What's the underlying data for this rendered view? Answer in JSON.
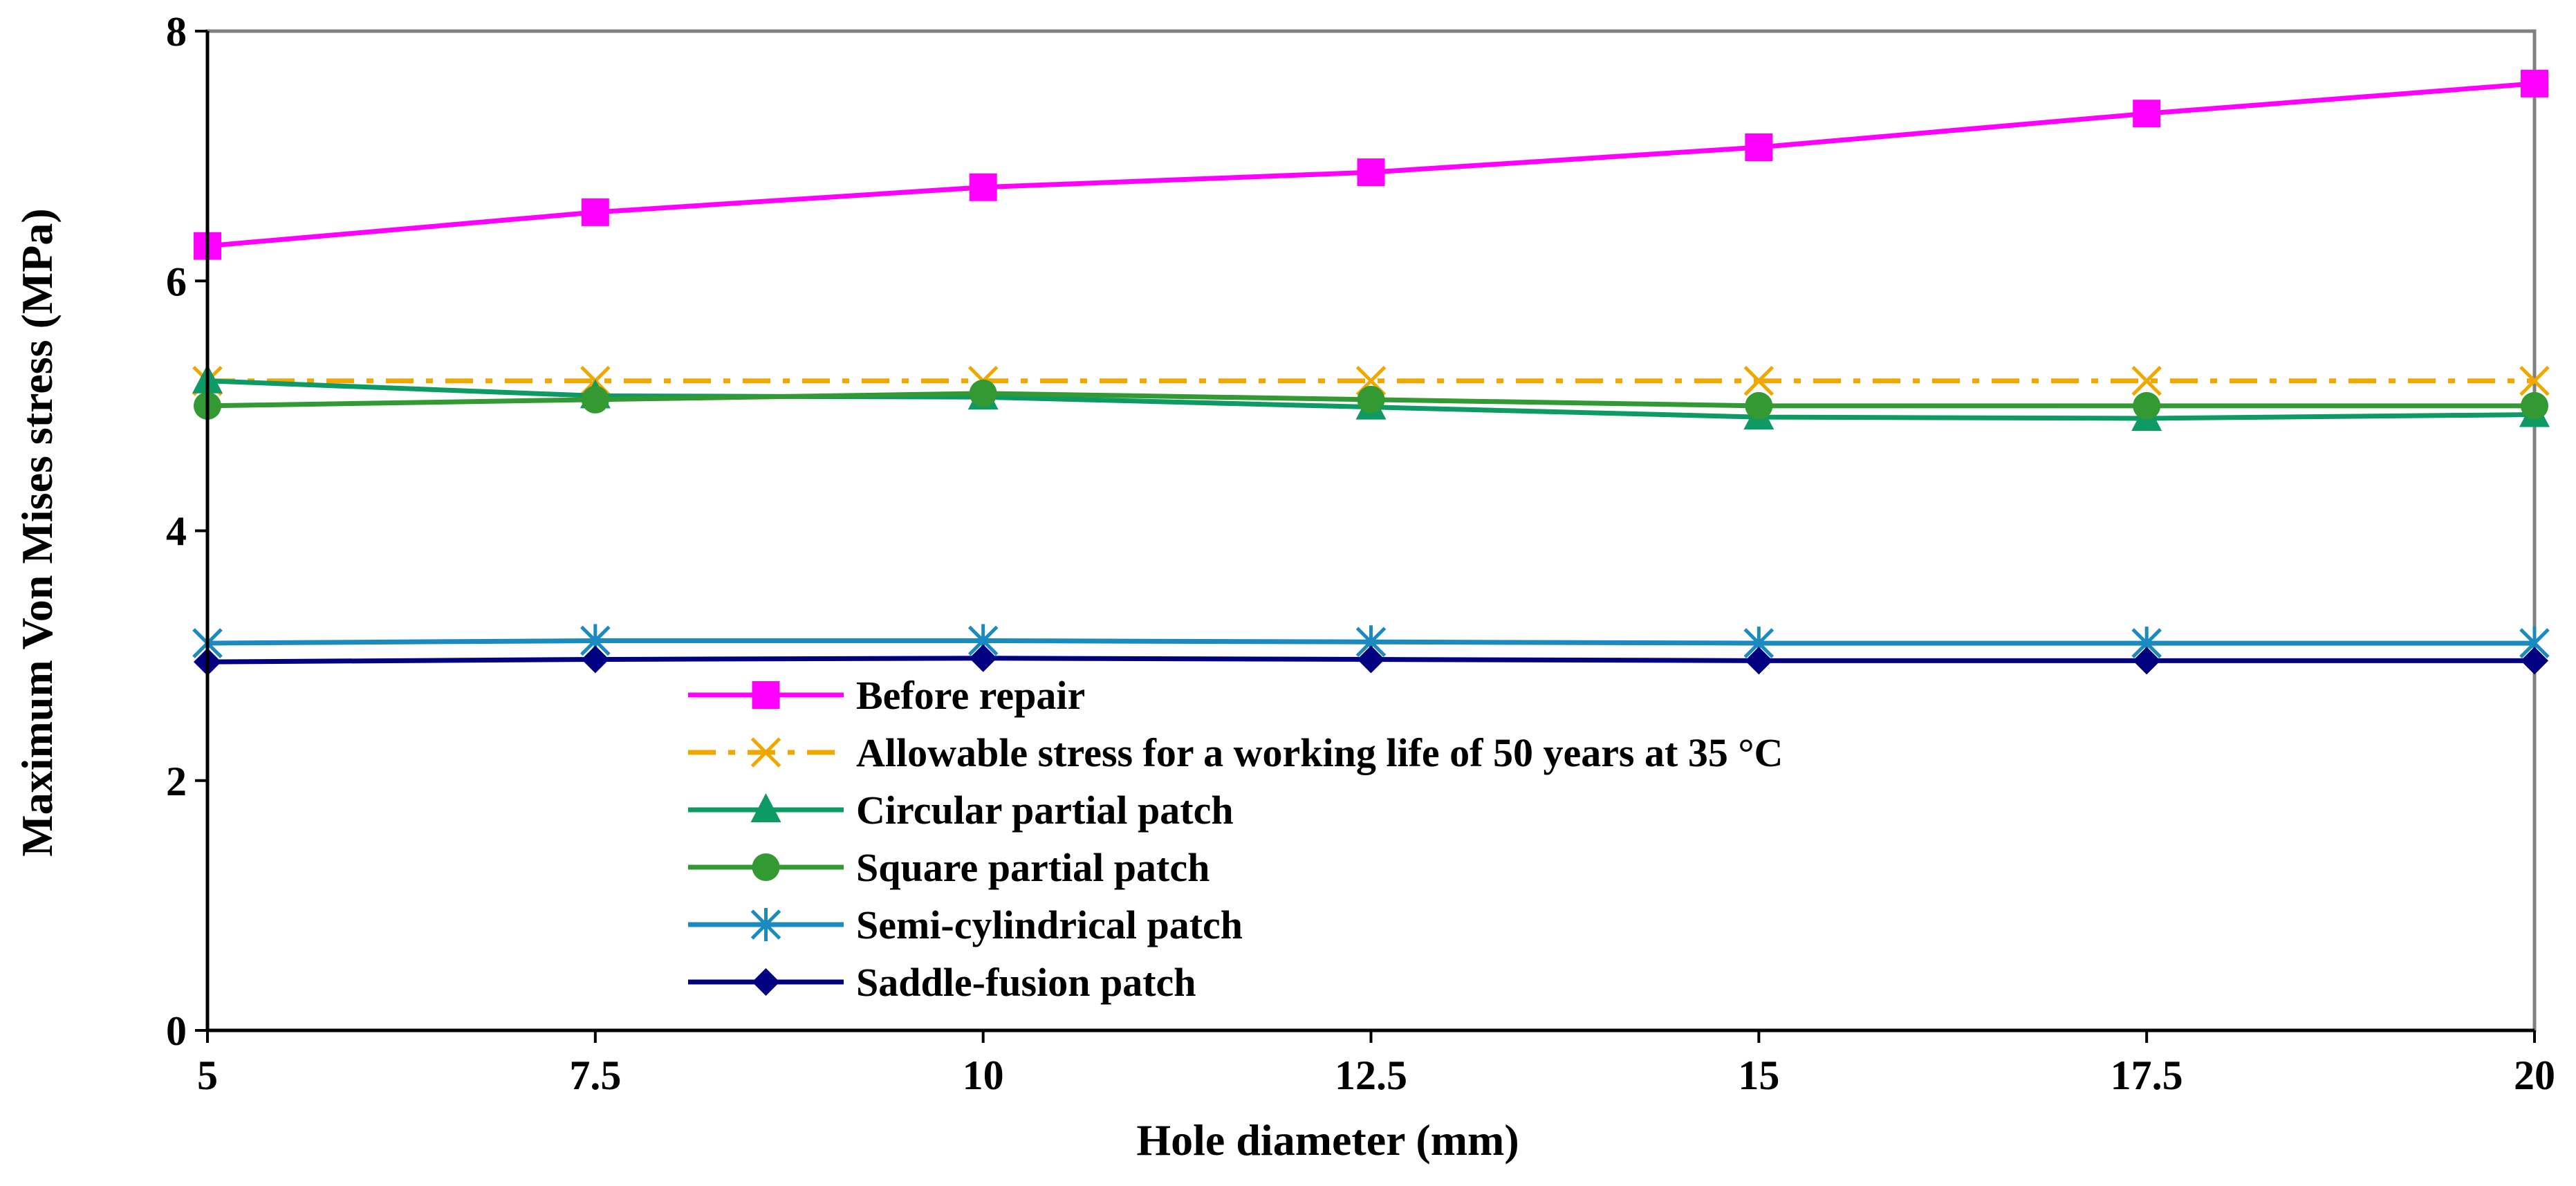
{
  "chart_data": {
    "type": "line",
    "title": "",
    "xlabel": "Hole diameter (mm)",
    "ylabel": "Maximum Von Mises stress (MPa)",
    "x": [
      5,
      7.5,
      10,
      12.5,
      15,
      17.5,
      20
    ],
    "x_tick_labels": [
      "5",
      "7.5",
      "10",
      "12.5",
      "15",
      "17.5",
      "20"
    ],
    "xlim": [
      5,
      20
    ],
    "ylim": [
      0,
      8
    ],
    "y_ticks": [
      0,
      2,
      4,
      6,
      8
    ],
    "y_tick_labels": [
      "0",
      "2",
      "4",
      "6",
      "8"
    ],
    "grid": false,
    "legend_position": "center-left",
    "series": [
      {
        "name": "Before repair",
        "color": "#ff00ff",
        "marker": "square",
        "dash": "solid",
        "values": [
          6.28,
          6.55,
          6.75,
          6.87,
          7.07,
          7.34,
          7.58
        ]
      },
      {
        "name": "Allowable stress for a working life of 50 years at 35 °C",
        "color": "#f0a800",
        "marker": "x",
        "dash": "dashdot",
        "values": [
          5.2,
          5.2,
          5.2,
          5.2,
          5.2,
          5.2,
          5.2
        ]
      },
      {
        "name": "Circular partial patch",
        "color": "#0e9a64",
        "marker": "triangle",
        "dash": "solid",
        "values": [
          5.2,
          5.08,
          5.07,
          4.99,
          4.91,
          4.9,
          4.93
        ]
      },
      {
        "name": "Square partial patch",
        "color": "#339933",
        "marker": "circle",
        "dash": "solid",
        "values": [
          5.0,
          5.05,
          5.1,
          5.05,
          5.0,
          5.0,
          5.0
        ]
      },
      {
        "name": "Semi-cylindrical patch",
        "color": "#1a8ac0",
        "marker": "asterisk",
        "dash": "solid",
        "values": [
          3.1,
          3.12,
          3.12,
          3.11,
          3.1,
          3.1,
          3.1
        ]
      },
      {
        "name": "Saddle-fusion patch",
        "color": "#000080",
        "marker": "diamond",
        "dash": "solid",
        "values": [
          2.95,
          2.97,
          2.98,
          2.97,
          2.96,
          2.96,
          2.96
        ]
      }
    ]
  }
}
